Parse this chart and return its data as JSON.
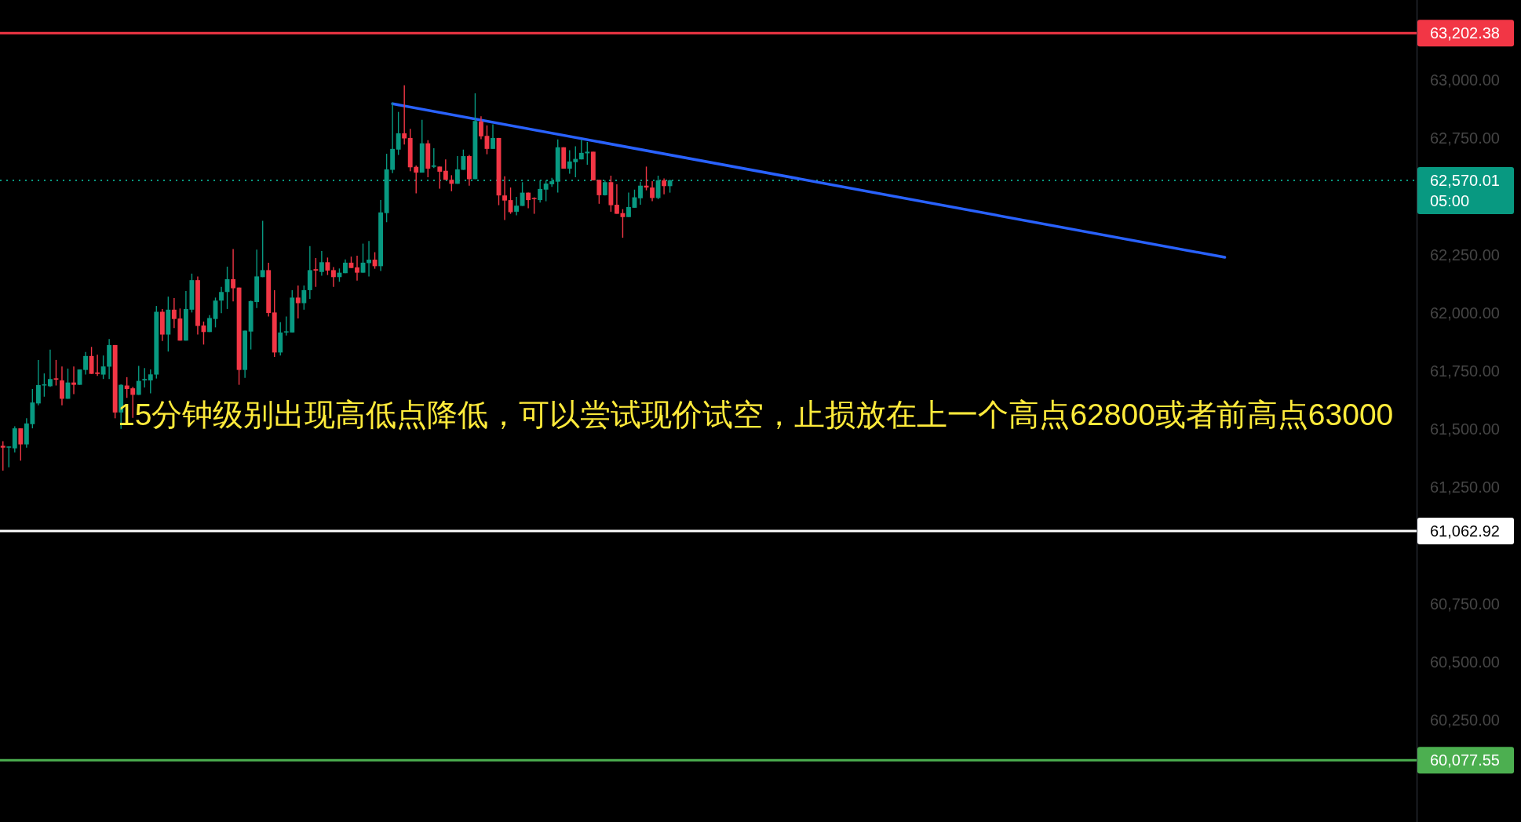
{
  "chart_data": {
    "type": "candlestick",
    "categories": [
      null,
      null,
      null,
      null,
      null,
      null,
      null,
      null,
      null,
      null,
      null,
      null,
      null,
      null,
      null,
      null,
      null,
      null,
      null,
      null,
      null,
      null,
      null,
      null,
      null,
      null,
      null,
      null,
      null,
      null,
      null,
      null,
      null,
      null,
      null,
      null,
      null,
      null,
      null,
      null,
      null,
      null,
      null,
      null,
      null,
      null,
      null,
      null,
      null,
      null,
      null,
      null,
      null,
      null,
      null,
      null,
      null,
      null,
      null,
      null,
      null,
      null,
      null,
      null,
      null,
      null,
      null,
      null,
      null,
      null,
      null,
      null,
      null,
      null,
      null,
      null,
      null,
      null,
      null,
      null,
      null,
      null,
      null,
      null,
      null,
      null,
      null,
      null,
      null,
      null,
      null,
      null,
      null,
      null,
      null,
      null,
      null,
      null,
      null,
      null,
      null,
      null,
      null,
      null,
      null,
      null,
      null,
      null,
      null,
      null,
      null,
      null,
      null,
      null,
      null,
      null,
      null,
      null,
      null,
      null,
      null,
      null,
      null,
      null,
      null,
      null,
      null,
      null,
      null,
      null,
      null,
      null,
      null,
      null,
      null,
      null,
      null,
      null,
      null,
      null,
      null,
      null,
      null,
      null,
      null,
      null,
      null,
      null,
      null,
      null,
      null,
      null,
      null,
      null,
      null,
      null,
      null,
      null,
      null,
      null,
      null,
      null,
      null,
      null,
      null,
      null,
      null,
      null,
      null,
      null,
      null,
      null,
      null,
      null,
      null,
      null,
      null,
      null,
      null,
      null,
      null,
      null,
      null,
      null,
      null,
      null,
      null,
      null,
      null,
      null,
      null,
      null,
      null,
      null,
      null,
      null,
      null,
      null,
      null,
      null,
      null,
      null,
      null,
      null,
      null,
      null,
      null,
      null,
      null,
      null,
      null,
      null,
      null,
      null,
      null,
      null,
      null,
      null,
      null,
      null,
      null,
      null,
      null,
      null,
      null,
      null,
      null,
      null,
      null,
      null,
      null,
      null,
      null,
      null,
      null,
      null,
      null,
      null,
      null,
      null
    ],
    "ohlc": [
      [
        61429,
        61449,
        61322,
        61421
      ],
      [
        61421,
        61426,
        61337,
        61426
      ],
      [
        61418,
        61513,
        61401,
        61504
      ],
      [
        61504,
        61504,
        61365,
        61435
      ],
      [
        61435,
        61547,
        61421,
        61525
      ],
      [
        61522,
        61673,
        61504,
        61615
      ],
      [
        61611,
        61798,
        61603,
        61690
      ],
      [
        61688,
        61740,
        61640,
        61693
      ],
      [
        61685,
        61842,
        61682,
        61716
      ],
      [
        61719,
        61798,
        61688,
        61713
      ],
      [
        61710,
        61770,
        61603,
        61631
      ],
      [
        61631,
        61761,
        61631,
        61701
      ],
      [
        61701,
        61770,
        61651,
        61691
      ],
      [
        61691,
        61757,
        61691,
        61757
      ],
      [
        61755,
        61832,
        61735,
        61815
      ],
      [
        61815,
        61854,
        61738,
        61738
      ],
      [
        61744,
        61820,
        61729,
        61738
      ],
      [
        61735,
        61817,
        61716,
        61770
      ],
      [
        61769,
        61888,
        61716,
        61862
      ],
      [
        61862,
        61862,
        61547,
        61572
      ],
      [
        61572,
        61693,
        61502,
        61691
      ],
      [
        61688,
        61724,
        61635,
        61673
      ],
      [
        61676,
        61682,
        61549,
        61648
      ],
      [
        61648,
        61772,
        61648,
        61708
      ],
      [
        61710,
        61763,
        61680,
        61716
      ],
      [
        61710,
        61757,
        61654,
        61736
      ],
      [
        61735,
        62030,
        61718,
        62005
      ],
      [
        62005,
        62017,
        61879,
        61907
      ],
      [
        61907,
        62070,
        61834,
        62014
      ],
      [
        62014,
        62064,
        61935,
        61974
      ],
      [
        61976,
        62019,
        61881,
        61881
      ],
      [
        61881,
        62094,
        61881,
        62017
      ],
      [
        62014,
        62169,
        62002,
        62141
      ],
      [
        62141,
        62157,
        61907,
        61944
      ],
      [
        61946,
        61963,
        61864,
        61918
      ],
      [
        61918,
        61991,
        61918,
        61978
      ],
      [
        61974,
        62066,
        61938,
        62053
      ],
      [
        62053,
        62112,
        61999,
        62090
      ],
      [
        62090,
        62199,
        62017,
        62145
      ],
      [
        62145,
        62275,
        62050,
        62106
      ],
      [
        62109,
        62109,
        61691,
        61755
      ],
      [
        61755,
        61924,
        61721,
        61924
      ],
      [
        61920,
        62053,
        61843,
        62051
      ],
      [
        62047,
        62272,
        62021,
        62157
      ],
      [
        62154,
        62396,
        62154,
        62184
      ],
      [
        62184,
        62216,
        61985,
        62000
      ],
      [
        62002,
        62098,
        61811,
        61830
      ],
      [
        61830,
        61960,
        61817,
        61916
      ],
      [
        61916,
        61985,
        61903,
        61921
      ],
      [
        61916,
        62098,
        61916,
        62066
      ],
      [
        62066,
        62118,
        61976,
        62042
      ],
      [
        62042,
        62118,
        62014,
        62098
      ],
      [
        62098,
        62287,
        62061,
        62184
      ],
      [
        62188,
        62236,
        62112,
        62182
      ],
      [
        62176,
        62266,
        62160,
        62218
      ],
      [
        62218,
        62238,
        62163,
        62182
      ],
      [
        62184,
        62197,
        62112,
        62154
      ],
      [
        62154,
        62191,
        62134,
        62173
      ],
      [
        62171,
        62230,
        62171,
        62216
      ],
      [
        62216,
        62242,
        62193,
        62193
      ],
      [
        62196,
        62246,
        62139,
        62173
      ],
      [
        62173,
        62298,
        62173,
        62216
      ],
      [
        62214,
        62309,
        62157,
        62229
      ],
      [
        62229,
        62261,
        62190,
        62201
      ],
      [
        62201,
        62485,
        62180,
        62432
      ],
      [
        62429,
        62684,
        62390,
        62617
      ],
      [
        62615,
        62904,
        62601,
        62705
      ],
      [
        62702,
        62864,
        62679,
        62772
      ],
      [
        62772,
        62978,
        62724,
        62750
      ],
      [
        62752,
        62791,
        62609,
        62626
      ],
      [
        62628,
        62634,
        62514,
        62603
      ],
      [
        62603,
        62830,
        62603,
        62729
      ],
      [
        62729,
        62742,
        62583,
        62620
      ],
      [
        62628,
        62708,
        62623,
        62634
      ],
      [
        62629,
        62629,
        62534,
        62607
      ],
      [
        62611,
        62660,
        62572,
        62572
      ],
      [
        62572,
        62592,
        62523,
        62555
      ],
      [
        62555,
        62674,
        62555,
        62617
      ],
      [
        62615,
        62702,
        62615,
        62674
      ],
      [
        62674,
        62679,
        62547,
        62575
      ],
      [
        62575,
        62944,
        62575,
        62825
      ],
      [
        62823,
        62845,
        62747,
        62759
      ],
      [
        62761,
        62806,
        62682,
        62705
      ],
      [
        62705,
        62811,
        62705,
        62752
      ],
      [
        62752,
        62752,
        62463,
        62505
      ],
      [
        62505,
        62587,
        62399,
        62483
      ],
      [
        62485,
        62539,
        62426,
        62433
      ],
      [
        62435,
        62499,
        62420,
        62461
      ],
      [
        62460,
        62562,
        62460,
        62517
      ],
      [
        62517,
        62517,
        62450,
        62485
      ],
      [
        62494,
        62497,
        62426,
        62489
      ],
      [
        62485,
        62570,
        62474,
        62533
      ],
      [
        62530,
        62570,
        62480,
        62556
      ],
      [
        62553,
        62581,
        62542,
        62566
      ],
      [
        62564,
        62746,
        62517,
        62712
      ],
      [
        62712,
        62712,
        62620,
        62620
      ],
      [
        62620,
        62699,
        62598,
        62651
      ],
      [
        62648,
        62716,
        62583,
        62662
      ],
      [
        62660,
        62744,
        62660,
        62688
      ],
      [
        62686,
        62735,
        62637,
        62693
      ],
      [
        62693,
        62693,
        62570,
        62570
      ],
      [
        62572,
        62572,
        62469,
        62506
      ],
      [
        62506,
        62570,
        62505,
        62562
      ],
      [
        62562,
        62590,
        62435,
        62463
      ],
      [
        62465,
        62553,
        62426,
        62426
      ],
      [
        62429,
        62446,
        62323,
        62412
      ],
      [
        62412,
        62517,
        62412,
        62455
      ],
      [
        62452,
        62530,
        62452,
        62497
      ],
      [
        62493,
        62564,
        62465,
        62547
      ],
      [
        62547,
        62629,
        62527,
        62539
      ],
      [
        62539,
        62566,
        62480,
        62494
      ],
      [
        62494,
        62590,
        62489,
        62570
      ],
      [
        62570,
        62578,
        62510,
        62545
      ],
      [
        62545,
        62573,
        62517,
        62570
      ],
      null,
      null,
      null,
      null,
      null,
      null,
      null,
      null,
      null,
      null,
      null,
      null,
      null,
      null,
      null,
      null,
      null,
      null,
      null,
      null,
      null,
      null,
      null,
      null,
      null,
      null,
      null,
      null,
      null,
      null,
      null,
      null,
      null,
      null,
      null,
      null,
      null,
      null,
      null,
      null,
      null,
      null,
      null,
      null,
      null,
      null,
      null,
      null,
      null,
      null,
      null,
      null,
      null,
      null,
      null,
      null,
      null,
      null,
      null,
      null,
      null,
      null,
      null,
      null,
      null,
      null,
      null,
      null,
      null,
      null,
      null,
      null,
      null,
      null,
      null,
      null,
      null,
      null,
      null,
      null,
      null,
      null,
      null,
      null,
      null,
      null,
      null,
      null,
      null,
      null,
      null,
      null,
      null,
      null,
      null,
      null,
      null,
      null,
      null,
      null,
      null,
      null,
      null,
      null,
      null,
      null,
      null,
      null,
      null,
      null,
      null,
      null,
      null,
      null,
      null,
      null,
      null,
      null,
      null,
      null,
      null,
      null,
      null,
      null,
      null,
      null
    ],
    "colors": [
      "#f23645",
      "#089981",
      "#089981",
      "#f23645",
      "#089981",
      "#089981",
      "#089981",
      "#089981",
      "#089981",
      "#f23645",
      "#f23645",
      "#089981",
      "#f23645",
      "#089981",
      "#089981",
      "#f23645",
      "#f23645",
      "#089981",
      "#089981",
      "#f23645",
      "#089981",
      "#f23645",
      "#f23645",
      "#089981",
      "#089981",
      "#089981",
      "#089981",
      "#f23645",
      "#089981",
      "#f23645",
      "#f23645",
      "#089981",
      "#089981",
      "#f23645",
      "#f23645",
      "#089981",
      "#089981",
      "#089981",
      "#089981",
      "#f23645",
      "#f23645",
      "#089981",
      "#089981",
      "#089981",
      "#089981",
      "#f23645",
      "#f23645",
      "#089981",
      "#089981",
      "#089981",
      "#f23645",
      "#089981",
      "#089981",
      "#f23645",
      "#089981",
      "#f23645",
      "#f23645",
      "#089981",
      "#089981",
      "#f23645",
      "#f23645",
      "#089981",
      "#089981",
      "#f23645",
      "#089981",
      "#089981",
      "#089981",
      "#089981",
      "#f23645",
      "#f23645",
      "#f23645",
      "#089981",
      "#f23645",
      "#089981",
      "#f23645",
      "#f23645",
      "#f23645",
      "#089981",
      "#089981",
      "#f23645",
      "#089981",
      "#f23645",
      "#f23645",
      "#089981",
      "#f23645",
      "#f23645",
      "#f23645",
      "#089981",
      "#089981",
      "#f23645",
      "#f23645",
      "#089981",
      "#089981",
      "#089981",
      "#089981",
      "#f23645",
      "#089981",
      "#089981",
      "#089981",
      "#089981",
      "#f23645",
      "#f23645",
      "#089981",
      "#f23645",
      "#f23645",
      "#f23645",
      "#089981",
      "#089981",
      "#089981",
      "#f23645",
      "#f23645",
      "#089981",
      "#f23645",
      "#089981",
      null,
      null,
      null,
      null,
      null,
      null,
      null,
      null,
      null,
      null,
      null,
      null,
      null,
      null,
      null,
      null,
      null,
      null,
      null,
      null,
      null,
      null,
      null,
      null,
      null,
      null,
      null,
      null,
      null,
      null,
      null,
      null,
      null,
      null,
      null,
      null,
      null,
      null,
      null,
      null,
      null,
      null,
      null,
      null,
      null,
      null,
      null,
      null,
      null,
      null,
      null,
      null,
      null,
      null,
      null,
      null,
      null,
      null,
      null,
      null,
      null,
      null,
      null,
      null,
      null,
      null,
      null,
      null,
      null,
      null,
      null,
      null,
      null,
      null,
      null,
      null,
      null,
      null,
      null,
      null,
      null,
      null,
      null,
      null,
      null,
      null,
      null,
      null,
      null,
      null,
      null,
      null,
      null,
      null,
      null,
      null,
      null,
      null,
      null,
      null,
      null,
      null,
      null,
      null,
      null,
      null,
      null,
      null,
      null,
      null,
      null,
      null,
      null,
      null,
      null,
      null,
      null,
      null,
      null,
      null,
      null,
      null,
      null,
      null,
      null,
      null
    ],
    "series": [
      {
        "type": "line",
        "color": "#2962ff",
        "values": [
          null,
          null,
          null,
          null,
          null,
          null,
          null,
          null,
          null,
          null,
          null,
          null,
          null,
          null,
          null,
          null,
          null,
          null,
          null,
          null,
          null,
          null,
          null,
          null,
          null,
          null,
          null,
          null,
          null,
          null,
          null,
          null,
          null,
          null,
          null,
          null,
          null,
          null,
          null,
          null,
          null,
          null,
          null,
          null,
          null,
          null,
          null,
          null,
          null,
          null,
          null,
          null,
          null,
          null,
          null,
          null,
          null,
          null,
          null,
          null,
          null,
          null,
          null,
          null,
          null,
          null,
          62899,
          null,
          null,
          null,
          null,
          null,
          null,
          null,
          null,
          null,
          null,
          null,
          null,
          null,
          null,
          null,
          null,
          null,
          null,
          null,
          null,
          null,
          null,
          null,
          null,
          null,
          null,
          null,
          null,
          null,
          null,
          null,
          null,
          null,
          null,
          null,
          null,
          null,
          null,
          null,
          null,
          null,
          null,
          null,
          null,
          null,
          null,
          null,
          null,
          null,
          null,
          null,
          null,
          null,
          null,
          null,
          null,
          null,
          null,
          null,
          null,
          null,
          null,
          null,
          null,
          null,
          null,
          null,
          null,
          null,
          null,
          null,
          null,
          null,
          null,
          null,
          null,
          null,
          null,
          null,
          null,
          null,
          null,
          null,
          null,
          null,
          null,
          null,
          null,
          null,
          null,
          null,
          null,
          null,
          null,
          null,
          null,
          null,
          null,
          null,
          null,
          null,
          null,
          null,
          null,
          null,
          null,
          null,
          null,
          null,
          null,
          null,
          null,
          null,
          null,
          null,
          null,
          null,
          null,
          null,
          null,
          null,
          null,
          null,
          null,
          null,
          null,
          null,
          null,
          null,
          null,
          null,
          null,
          null,
          null,
          null,
          null,
          null,
          null,
          null,
          null,
          62239,
          null,
          null,
          null,
          null,
          null,
          null,
          null,
          null,
          null,
          null,
          null,
          null,
          null,
          null,
          null,
          null,
          null,
          null,
          null,
          null,
          null,
          null,
          null,
          null,
          null,
          null,
          null,
          null,
          null,
          null,
          null,
          null
        ]
      }
    ],
    "ylim": [
      59812,
      63345
    ],
    "yticks": [
      {
        "value": 63000,
        "label": "63,000.00"
      },
      {
        "value": 62750,
        "label": "62,750.00"
      },
      {
        "value": 62250,
        "label": "62,250.00"
      },
      {
        "value": 62000,
        "label": "62,000.00"
      },
      {
        "value": 61750,
        "label": "61,750.00"
      },
      {
        "value": 61500,
        "label": "61,500.00"
      },
      {
        "value": 61250,
        "label": "61,250.00"
      },
      {
        "value": 60750,
        "label": "60,750.00"
      },
      {
        "value": 60500,
        "label": "60,500.00"
      },
      {
        "value": 60250,
        "label": "60,250.00"
      }
    ],
    "tick_labels": "y",
    "ref_lines": [
      {
        "axis": "y",
        "value": 63202.38,
        "label": "63,202.38",
        "color": "#f23645"
      },
      {
        "axis": "y",
        "value": 62570.01,
        "label": "62,570.01\n05:00",
        "color": "#089981",
        "line_style": "dotted"
      },
      {
        "axis": "y",
        "value": 61062.92,
        "label": "61,062.92",
        "color": "#ffffff"
      },
      {
        "axis": "y",
        "value": 60077.55,
        "label": "60,077.55",
        "color": "#4caf50"
      }
    ],
    "annotations": [
      "15分钟级别出现高低点降低，可以尝试现价试空，止损放在上一个高点62800或者前高点63000"
    ]
  }
}
